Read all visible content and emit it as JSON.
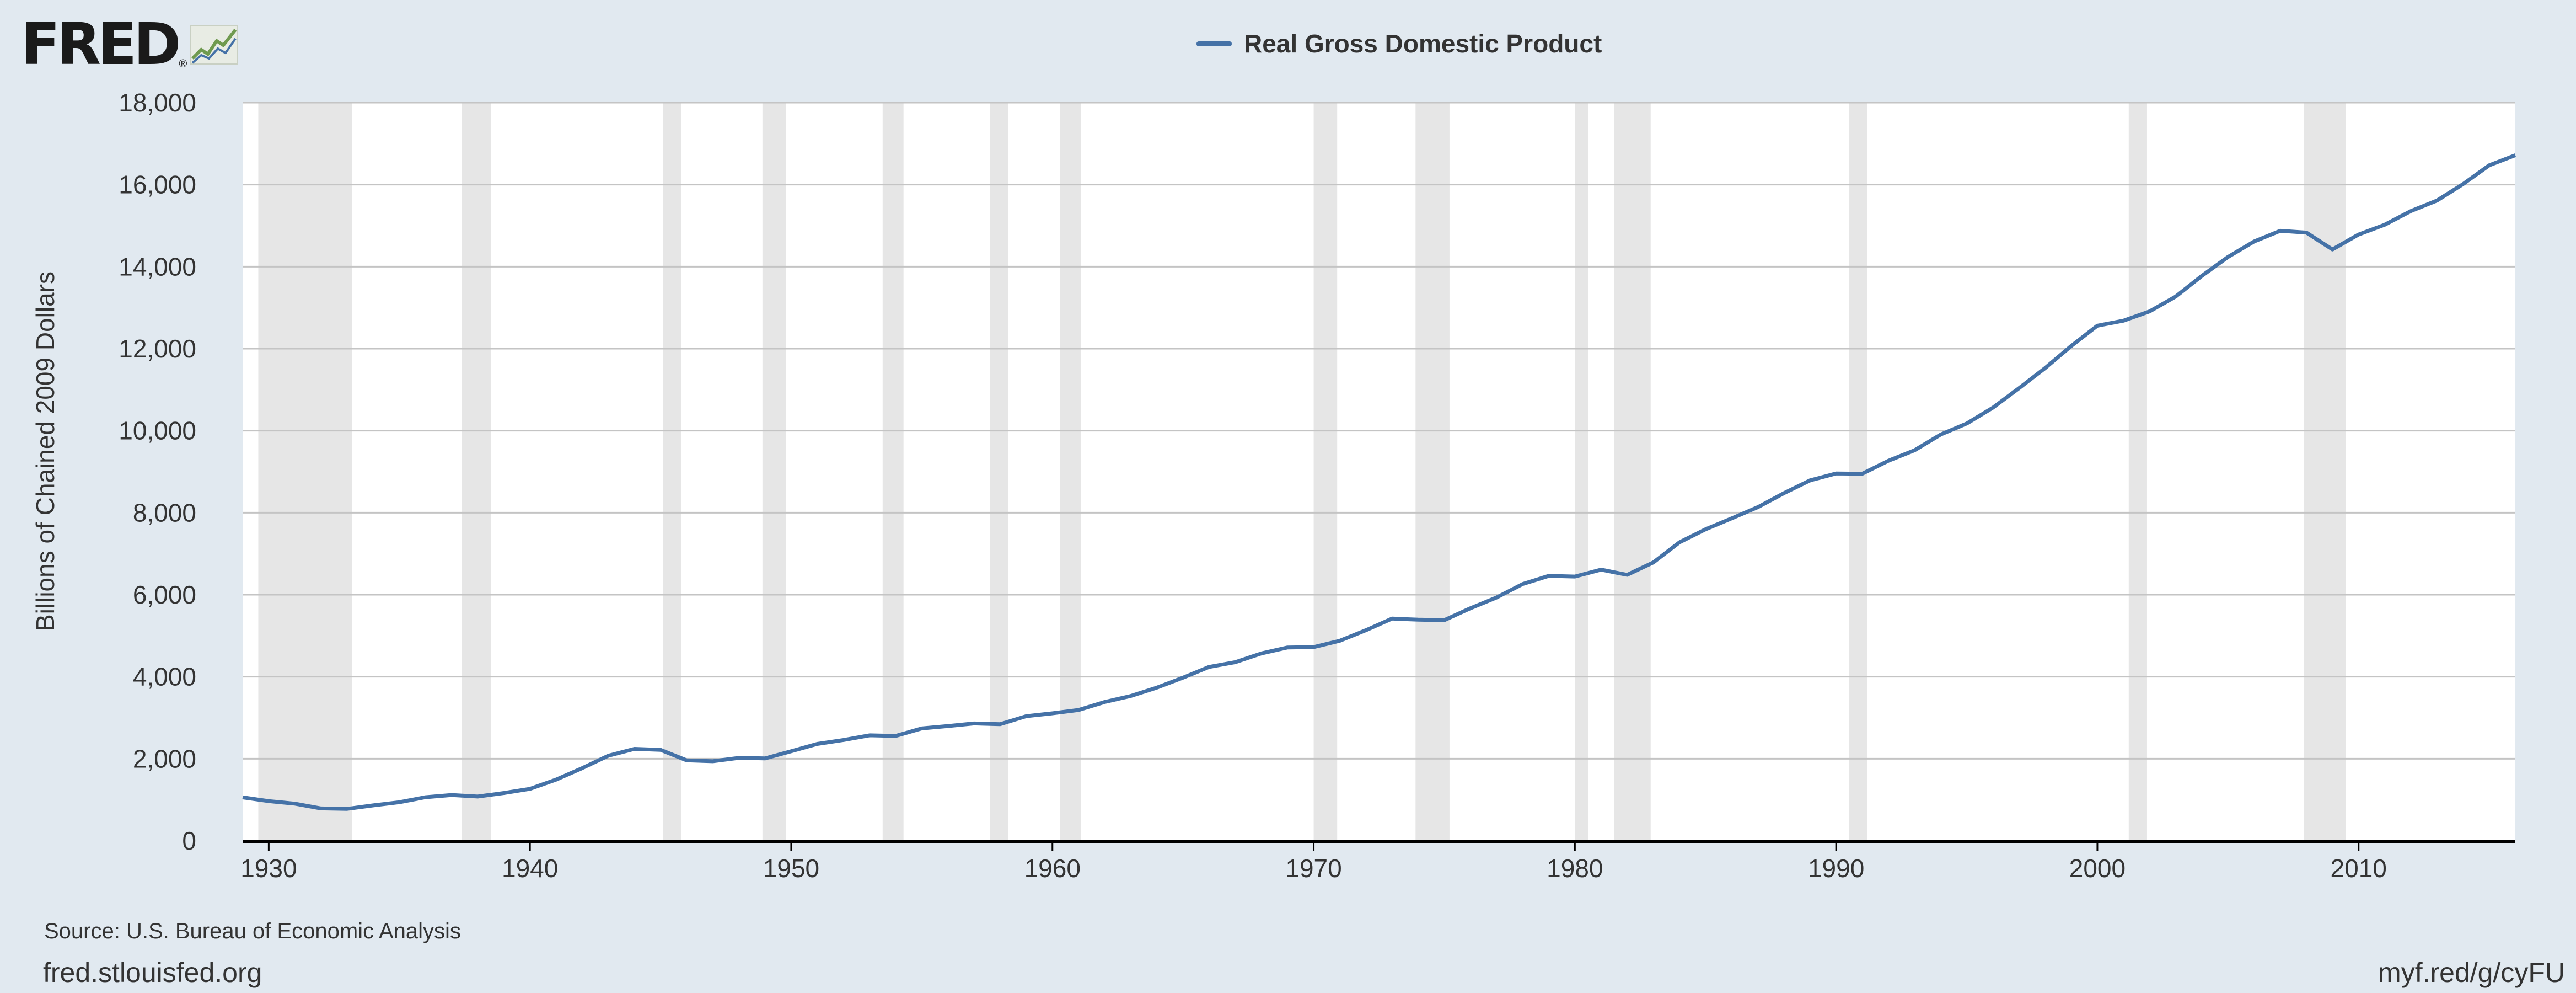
{
  "header": {
    "logo_text": "FRED",
    "logo_mark": "®",
    "logo_icon": "trend-line-icon"
  },
  "footer": {
    "source": "Source: U.S. Bureau of Economic Analysis",
    "site": "fred.stlouisfed.org",
    "short_link": "myf.red/g/cyFU"
  },
  "colors": {
    "background": "#e1e9f0",
    "plot_background": "#ffffff",
    "line": "#4572a7",
    "recession_shade": "#e6e6e6",
    "gridline": "#c4c4c4",
    "axis": "#000000",
    "text": "#333333"
  },
  "chart_data": {
    "type": "line",
    "title": "",
    "xlabel": "",
    "ylabel": "Billions of Chained 2009 Dollars",
    "legend": {
      "position": "top-center"
    },
    "grid": true,
    "xlim": [
      1929,
      2016
    ],
    "ylim": [
      0,
      18000
    ],
    "x_ticks": [
      1930,
      1940,
      1950,
      1960,
      1970,
      1980,
      1990,
      2000,
      2010
    ],
    "x_tick_labels": [
      "1930",
      "1940",
      "1950",
      "1960",
      "1970",
      "1980",
      "1990",
      "2000",
      "2010"
    ],
    "y_ticks": [
      0,
      2000,
      4000,
      6000,
      8000,
      10000,
      12000,
      14000,
      16000,
      18000
    ],
    "y_tick_labels": [
      "0",
      "2,000",
      "4,000",
      "6,000",
      "8,000",
      "10,000",
      "12,000",
      "14,000",
      "16,000",
      "18,000"
    ],
    "recession_bands": [
      [
        1929.6,
        1933.2
      ],
      [
        1937.4,
        1938.5
      ],
      [
        1945.1,
        1945.8
      ],
      [
        1948.9,
        1949.8
      ],
      [
        1953.5,
        1954.3
      ],
      [
        1957.6,
        1958.3
      ],
      [
        1960.3,
        1961.1
      ],
      [
        1970.0,
        1970.9
      ],
      [
        1973.9,
        1975.2
      ],
      [
        1980.0,
        1980.5
      ],
      [
        1981.5,
        1982.9
      ],
      [
        1990.5,
        1991.2
      ],
      [
        2001.2,
        2001.9
      ],
      [
        2007.9,
        2009.5
      ]
    ],
    "series": [
      {
        "name": "Real Gross Domestic Product",
        "x": [
          1929,
          1930,
          1931,
          1932,
          1933,
          1934,
          1935,
          1936,
          1937,
          1938,
          1939,
          1940,
          1941,
          1942,
          1943,
          1944,
          1945,
          1946,
          1947,
          1948,
          1949,
          1950,
          1951,
          1952,
          1953,
          1954,
          1955,
          1956,
          1957,
          1958,
          1959,
          1960,
          1961,
          1962,
          1963,
          1964,
          1965,
          1966,
          1967,
          1968,
          1969,
          1970,
          1971,
          1972,
          1973,
          1974,
          1975,
          1976,
          1977,
          1978,
          1979,
          1980,
          1981,
          1982,
          1983,
          1984,
          1985,
          1986,
          1987,
          1988,
          1989,
          1990,
          1991,
          1992,
          1993,
          1994,
          1995,
          1996,
          1997,
          1998,
          1999,
          2000,
          2001,
          2002,
          2003,
          2004,
          2005,
          2006,
          2007,
          2008,
          2009,
          2010,
          2011,
          2012,
          2013,
          2014,
          2015,
          2016
        ],
        "values": [
          1057,
          966,
          904,
          788,
          778,
          862,
          939,
          1061,
          1115,
          1077,
          1164,
          1266,
          1491,
          1771,
          2073,
          2240,
          2217,
          1960,
          1939,
          2021,
          2009,
          2184,
          2361,
          2456,
          2571,
          2556,
          2739,
          2797,
          2860,
          2842,
          3038,
          3108,
          3188,
          3383,
          3530,
          3735,
          3977,
          4239,
          4355,
          4569,
          4713,
          4722,
          4877,
          5134,
          5418,
          5390,
          5379,
          5669,
          5931,
          6260,
          6459,
          6443,
          6611,
          6484,
          6785,
          7277,
          7594,
          7861,
          8133,
          8475,
          8787,
          8955,
          8949,
          9267,
          9521,
          9905,
          10175,
          10561,
          11035,
          11526,
          12066,
          12560,
          12682,
          12909,
          13271,
          13774,
          14234,
          14614,
          14874,
          14830,
          14419,
          14784,
          15021,
          15355,
          15612,
          16013,
          16472,
          16716
        ]
      }
    ]
  }
}
